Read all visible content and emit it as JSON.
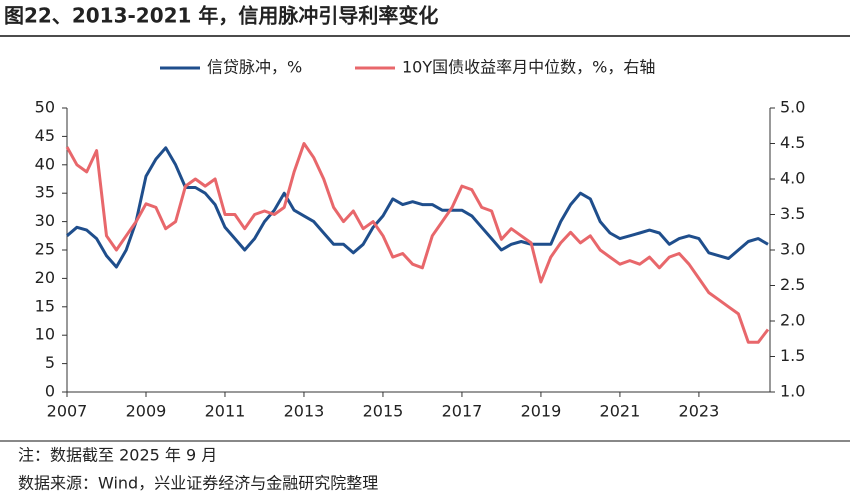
{
  "chart_data": {
    "type": "line",
    "title": "图22、2013-2021 年，信用脉冲引导利率变化",
    "x": [
      2007,
      2007.25,
      2007.5,
      2007.75,
      2008,
      2008.25,
      2008.5,
      2008.75,
      2009,
      2009.25,
      2009.5,
      2009.75,
      2010,
      2010.25,
      2010.5,
      2010.75,
      2011,
      2011.25,
      2011.5,
      2011.75,
      2012,
      2012.25,
      2012.5,
      2012.75,
      2013,
      2013.25,
      2013.5,
      2013.75,
      2014,
      2014.25,
      2014.5,
      2014.75,
      2015,
      2015.25,
      2015.5,
      2015.75,
      2016,
      2016.25,
      2016.5,
      2016.75,
      2017,
      2017.25,
      2017.5,
      2017.75,
      2018,
      2018.25,
      2018.5,
      2018.75,
      2019,
      2019.25,
      2019.5,
      2019.75,
      2020,
      2020.25,
      2020.5,
      2020.75,
      2021,
      2021.25,
      2021.5,
      2021.75,
      2022,
      2022.25,
      2022.5,
      2022.75,
      2023,
      2023.25,
      2023.5,
      2023.75,
      2024,
      2024.25,
      2024.5,
      2024.75
    ],
    "series": [
      {
        "name": "信贷脉冲，%",
        "color": "#1f4e8c",
        "axis": "y",
        "values": [
          27.5,
          29,
          28.5,
          27,
          24,
          22,
          25,
          30,
          38,
          41,
          43,
          40,
          36,
          36,
          35,
          33,
          29,
          27,
          25,
          27,
          30,
          32,
          35,
          32,
          31,
          30,
          28,
          26,
          26,
          24.5,
          26,
          29,
          31,
          34,
          33,
          33.5,
          33,
          33,
          32,
          32,
          32,
          31,
          29,
          27,
          25,
          26,
          26.5,
          26,
          26,
          26,
          30,
          33,
          35,
          34,
          30,
          28,
          27,
          27.5,
          28,
          28.5,
          28,
          26,
          27,
          27.5,
          27,
          24.5,
          24,
          23.5,
          25,
          26.5,
          27,
          26
        ]
      },
      {
        "name": "10Y国债收益率月中位数，%，右轴",
        "color": "#e8676b",
        "axis": "y2",
        "values": [
          4.45,
          4.2,
          4.1,
          4.4,
          3.2,
          3.0,
          3.2,
          3.4,
          3.65,
          3.6,
          3.3,
          3.4,
          3.9,
          4.0,
          3.9,
          4.0,
          3.5,
          3.5,
          3.3,
          3.5,
          3.55,
          3.5,
          3.6,
          4.1,
          4.5,
          4.3,
          4.0,
          3.6,
          3.4,
          3.55,
          3.3,
          3.4,
          3.2,
          2.9,
          2.95,
          2.8,
          2.75,
          3.2,
          3.4,
          3.6,
          3.9,
          3.85,
          3.6,
          3.55,
          3.15,
          3.3,
          3.2,
          3.1,
          2.55,
          2.9,
          3.1,
          3.25,
          3.1,
          3.2,
          3.0,
          2.9,
          2.8,
          2.85,
          2.8,
          2.9,
          2.75,
          2.9,
          2.95,
          2.8,
          2.6,
          2.4,
          2.3,
          2.2,
          2.1,
          1.7,
          1.7,
          1.88
        ]
      }
    ],
    "xlim": [
      2007,
      2024.8
    ],
    "xticks": [
      2007,
      2009,
      2011,
      2013,
      2015,
      2017,
      2019,
      2021,
      2023
    ],
    "ylim": [
      0,
      50
    ],
    "yticks": [
      0,
      5,
      10,
      15,
      20,
      25,
      30,
      35,
      40,
      45,
      50
    ],
    "y2lim": [
      1,
      5
    ],
    "y2ticks": [
      {
        "value": 1,
        "label": "1.0"
      },
      {
        "value": 1.5,
        "label": "1.5"
      },
      {
        "value": 2,
        "label": "2.0"
      },
      {
        "value": 2.5,
        "label": "2.5"
      },
      {
        "value": 3,
        "label": "3.0"
      },
      {
        "value": 3.5,
        "label": "3.5"
      },
      {
        "value": 4,
        "label": "4.0"
      },
      {
        "value": 4.5,
        "label": "4.5"
      },
      {
        "value": 5,
        "label": "5.0"
      }
    ],
    "grid": false,
    "legend": "top"
  },
  "notes": [
    "注：数据截至 2025 年 9 月",
    "数据来源：Wind，兴业证券经济与金融研究院整理"
  ]
}
